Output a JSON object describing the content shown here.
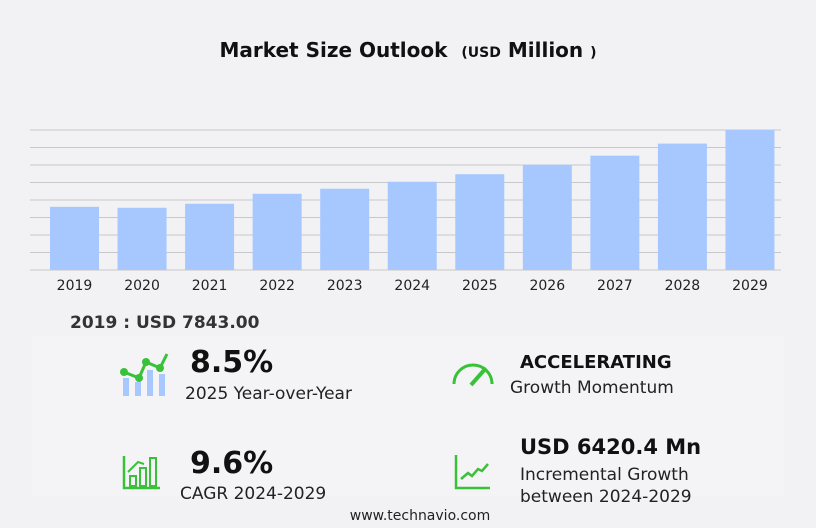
{
  "title": {
    "main": "Market Size Outlook",
    "paren_open": "(",
    "unit": "USD",
    "unit_word": "Million",
    "paren_close": ")"
  },
  "chart_data": {
    "type": "bar",
    "title": "Market Size Outlook (USD Million)",
    "categories": [
      "2019",
      "2020",
      "2021",
      "2022",
      "2023",
      "2024",
      "2025",
      "2026",
      "2027",
      "2028",
      "2029"
    ],
    "values": [
      7843,
      7720,
      8220,
      9460,
      10090,
      10955,
      11890,
      13070,
      14190,
      15690,
      17375
    ],
    "ylim": [
      0,
      17375
    ],
    "grid": true,
    "bar_color": "#a6c8ff"
  },
  "base_value": "2019 : USD  7843.00",
  "stats": {
    "yoy": {
      "value": "8.5%",
      "label": "2025 Year-over-Year"
    },
    "momentum": {
      "value": "ACCELERATING",
      "label": "Growth Momentum"
    },
    "cagr": {
      "value": "9.6%",
      "label": "CAGR 2024-2029"
    },
    "incremental": {
      "value": "USD 6420.4 Mn",
      "label1": "Incremental Growth",
      "label2": "between 2024-2029"
    }
  },
  "footer": "www.technavio.com",
  "colors": {
    "accent": "#3ac13a",
    "bar": "#a6c8ff"
  }
}
